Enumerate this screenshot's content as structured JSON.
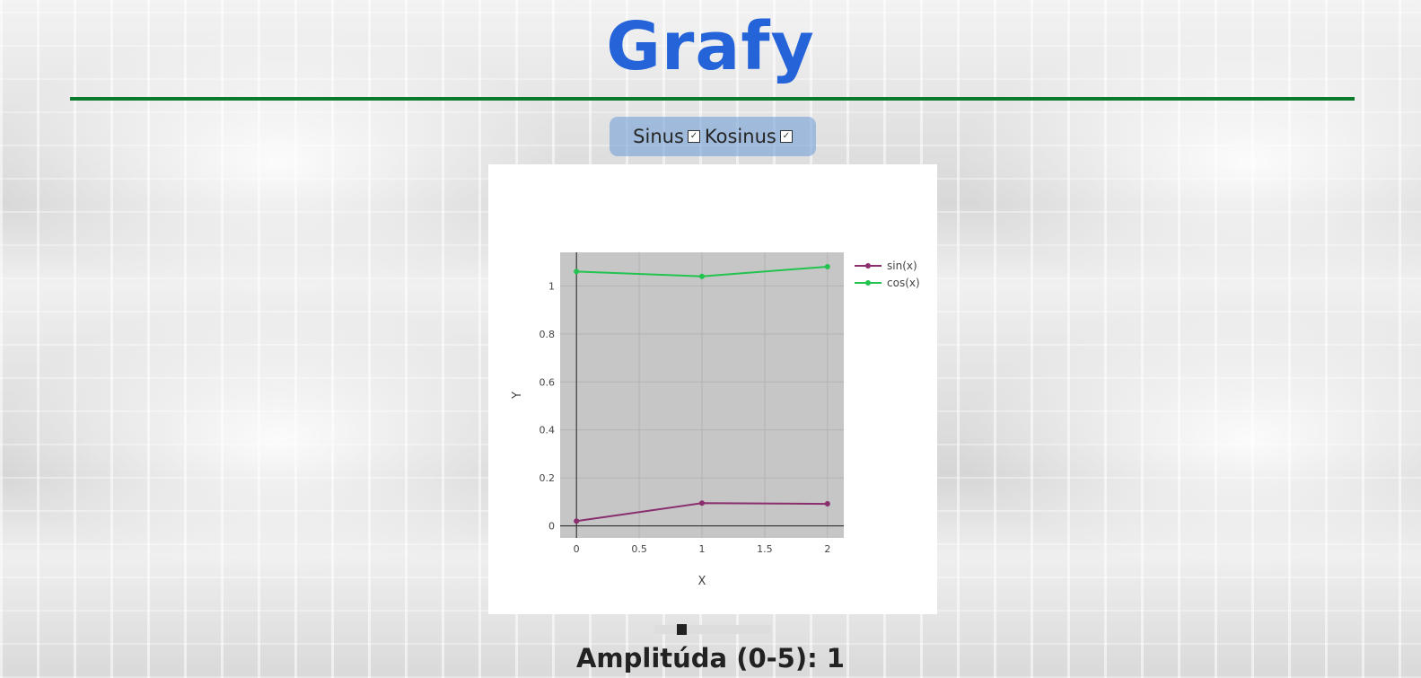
{
  "page": {
    "title": "Grafy"
  },
  "toggles": {
    "sinus_label": "Sinus",
    "kosinus_label": "Kosinus",
    "sinus_checked": true,
    "kosinus_checked": true
  },
  "slider": {
    "label_text": "Amplitúda (0-5): 1",
    "min": 0,
    "max": 5,
    "value": 1
  },
  "colors": {
    "title": "#2563d9",
    "rule": "#0c7a2c",
    "sin_series": "#8a2e6e",
    "cos_series": "#22c34e",
    "plot_bg": "#c6c6c6"
  },
  "chart_data": {
    "type": "line",
    "title": "",
    "xlabel": "X",
    "ylabel": "Y",
    "xlim": [
      -0.13,
      2.13
    ],
    "ylim": [
      -0.05,
      1.14
    ],
    "xticks": [
      0,
      0.5,
      1,
      1.5,
      2
    ],
    "xtick_labels": [
      "0",
      "0.5",
      "1",
      "1.5",
      "2"
    ],
    "yticks": [
      0,
      0.2,
      0.4,
      0.6,
      0.8,
      1
    ],
    "ytick_labels": [
      "0",
      "0.2",
      "0.4",
      "0.6",
      "0.8",
      "1"
    ],
    "grid": true,
    "legend_position": "top-right-outside",
    "series": [
      {
        "name": "sin(x)",
        "x": [
          0,
          1,
          2
        ],
        "y": [
          0.02,
          0.095,
          0.092
        ],
        "color": "#8a2e6e"
      },
      {
        "name": "cos(x)",
        "x": [
          0,
          1,
          2
        ],
        "y": [
          1.06,
          1.04,
          1.08
        ],
        "color": "#22c34e"
      }
    ]
  }
}
